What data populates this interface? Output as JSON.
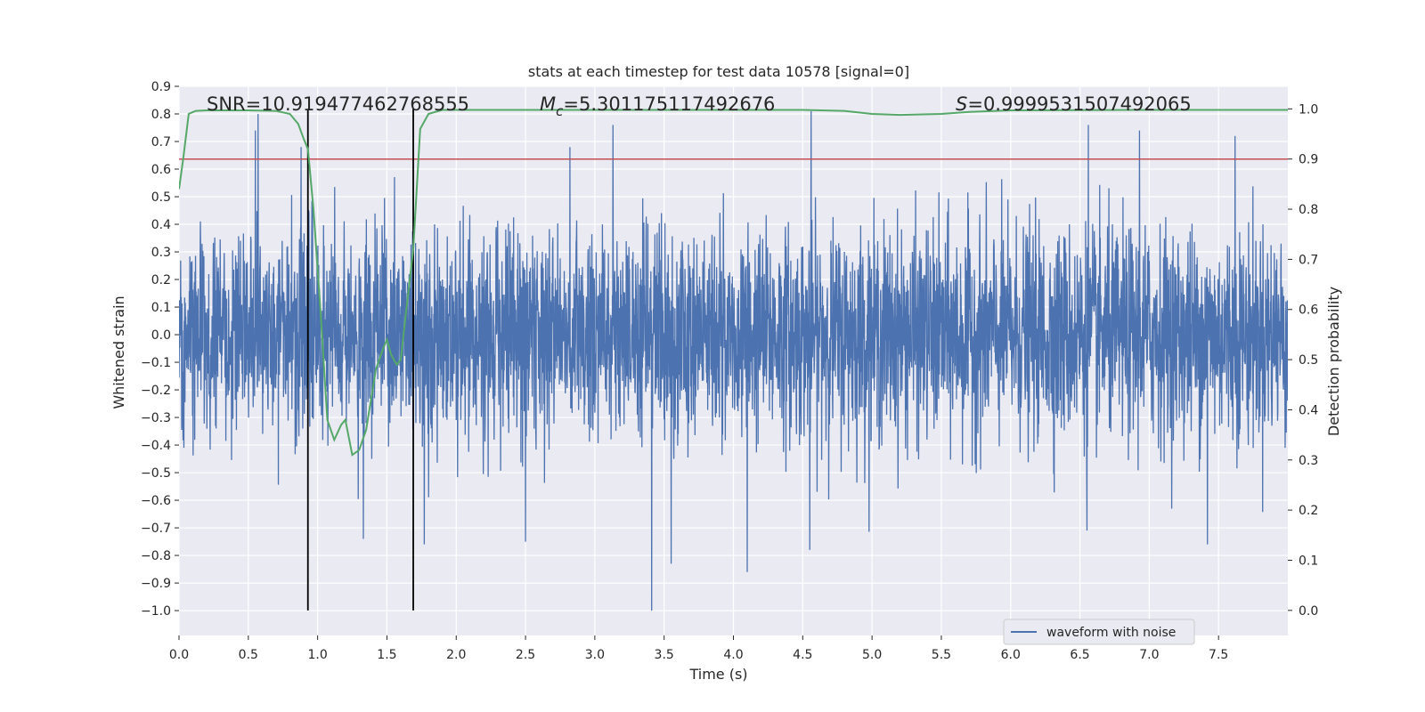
{
  "chart_data": {
    "type": "line",
    "title": "stats at each timestep for test data 10578 [signal=0]",
    "xlabel": "Time (s)",
    "ylabel": "Whitened strain",
    "y2label": "Detection probability",
    "xlim": [
      0.0,
      8.0
    ],
    "ylim": [
      -1.09,
      0.9
    ],
    "y2lim": [
      -0.05,
      1.045
    ],
    "xticks": [
      "0.0",
      "0.5",
      "1.0",
      "1.5",
      "2.0",
      "2.5",
      "3.0",
      "3.5",
      "4.0",
      "4.5",
      "5.0",
      "5.5",
      "6.0",
      "6.5",
      "7.0",
      "7.5"
    ],
    "yticks": [
      "0.9",
      "0.8",
      "0.7",
      "0.6",
      "0.5",
      "0.4",
      "0.3",
      "0.2",
      "0.1",
      "0.0",
      "−0.1",
      "−0.2",
      "−0.3",
      "−0.4",
      "−0.5",
      "−0.6",
      "−0.7",
      "−0.8",
      "−0.9",
      "−1.0"
    ],
    "y2ticks": [
      "1.0",
      "0.9",
      "0.8",
      "0.7",
      "0.6",
      "0.5",
      "0.4",
      "0.3",
      "0.2",
      "0.1",
      "0.0"
    ],
    "annotations": {
      "snr": "SNR=10.919477462768555",
      "mc_symbol": "M",
      "mc_sub": "c",
      "mc_value": "=5.301175117492676",
      "s_symbol": "S",
      "s_value": "=0.9999531507492065"
    },
    "threshold": 0.9,
    "vlines": [
      0.93,
      1.69
    ],
    "waveform": {
      "name": "waveform with noise",
      "sample_rate": 512,
      "baseline_std": 0.19,
      "clip": [
        -1.0,
        0.82
      ],
      "notable_peaks": [
        {
          "t": 0.55,
          "v": 0.74
        },
        {
          "t": 0.57,
          "v": 0.8
        },
        {
          "t": 0.88,
          "v": 0.68
        },
        {
          "t": 2.82,
          "v": 0.68
        },
        {
          "t": 3.13,
          "v": 0.76
        },
        {
          "t": 4.56,
          "v": 0.81
        },
        {
          "t": 6.56,
          "v": 0.76
        },
        {
          "t": 6.93,
          "v": 0.74
        },
        {
          "t": 7.62,
          "v": 0.72
        },
        {
          "t": 3.41,
          "v": -1.0
        },
        {
          "t": 3.55,
          "v": -0.83
        },
        {
          "t": 4.1,
          "v": -0.86
        },
        {
          "t": 4.55,
          "v": -0.78
        },
        {
          "t": 1.33,
          "v": -0.74
        },
        {
          "t": 7.42,
          "v": -0.76
        },
        {
          "t": 1.77,
          "v": -0.76
        },
        {
          "t": 2.5,
          "v": -0.75
        },
        {
          "t": 6.55,
          "v": -0.71
        }
      ]
    },
    "series": [
      {
        "name": "Detection probability",
        "x": [
          0.0,
          0.03,
          0.07,
          0.12,
          0.2,
          0.3,
          0.5,
          0.7,
          0.8,
          0.86,
          0.9,
          0.93,
          0.97,
          1.02,
          1.07,
          1.12,
          1.17,
          1.2,
          1.25,
          1.3,
          1.35,
          1.42,
          1.47,
          1.5,
          1.53,
          1.57,
          1.6,
          1.64,
          1.69,
          1.74,
          1.8,
          1.9,
          2.0,
          2.5,
          3.0,
          3.5,
          4.0,
          4.5,
          4.8,
          5.0,
          5.2,
          5.5,
          5.7,
          6.0,
          7.0,
          8.0
        ],
        "y": [
          0.84,
          0.9,
          0.99,
          0.996,
          0.997,
          0.997,
          0.997,
          0.996,
          0.99,
          0.97,
          0.94,
          0.92,
          0.8,
          0.6,
          0.38,
          0.34,
          0.37,
          0.38,
          0.31,
          0.32,
          0.36,
          0.48,
          0.52,
          0.54,
          0.51,
          0.49,
          0.5,
          0.6,
          0.72,
          0.96,
          0.99,
          0.998,
          0.998,
          0.998,
          0.998,
          0.998,
          0.998,
          0.998,
          0.996,
          0.99,
          0.988,
          0.99,
          0.994,
          0.997,
          0.998,
          0.998
        ]
      }
    ],
    "legend": {
      "label": "waveform with noise",
      "location": "lower right"
    },
    "colors": {
      "background": "#eaeaf2",
      "grid": "#ffffff",
      "waveform": "#4c72b0",
      "probability": "#55a868",
      "threshold": "#c44e52",
      "vline": "#000000"
    }
  }
}
